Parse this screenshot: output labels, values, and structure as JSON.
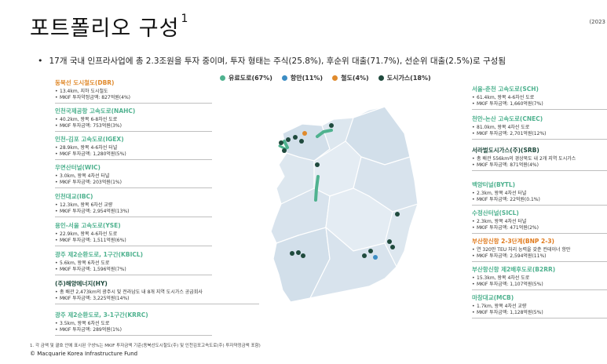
{
  "header": {
    "title": "포트폴리오 구성",
    "title_sup": "1",
    "date": "(2023"
  },
  "summary": {
    "bullet": "17개 국내 인프라사업에 총 2.3조원을 투자 중이며, 투자 형태는 주식(25.8%), 후순위 대출(71.7%), 선순위 대출(2.5%)로 구성됨"
  },
  "legend": [
    {
      "label": "유료도로(67%)",
      "color": "#4fb28f"
    },
    {
      "label": "항만(11%)",
      "color": "#3c8dc4"
    },
    {
      "label": "철도(4%)",
      "color": "#e08a2c"
    },
    {
      "label": "도시가스(18%)",
      "color": "#1f4a3d"
    }
  ],
  "left_assets": [
    {
      "name": "동북선 도시철도(DBR)",
      "type": "rail",
      "lines": [
        "13.4km, 지하 도시철도",
        "MKIF 투자약정금액: 827억원(4%)"
      ]
    },
    {
      "name": "인천국제공항 고속도로(NAHC)",
      "type": "toll",
      "lines": [
        "40.2km, 왕복 6-8차선 도로",
        "MKIF 투자금액: 753억원(3%)"
      ]
    },
    {
      "name": "인천-김포 고속도로(IGEX)",
      "type": "toll",
      "lines": [
        "28.9km, 왕복 4-6차선 터널",
        "MKIF 투자금액: 1,280억원(5%)"
      ]
    },
    {
      "name": "우면산터널(WIC)",
      "type": "toll",
      "lines": [
        "3.0km, 왕복 4차선 터널",
        "MKIF 투자금액: 203억원(1%)"
      ]
    },
    {
      "name": "인천대교(IBC)",
      "type": "toll",
      "lines": [
        "12.3km, 왕복 6차선 교량",
        "MKIF 투자금액: 2,954억원(13%)"
      ]
    },
    {
      "name": "용인-서울 고속도로(YSE)",
      "type": "toll",
      "lines": [
        "22.9km, 왕복 4-6차선 도로",
        "MKIF 투자금액: 1,511억원(6%)"
      ]
    },
    {
      "name": "광주 제2순환도로, 1구간(KBICL)",
      "type": "toll",
      "lines": [
        "5.6km, 왕복 6차선 도로",
        "MKIF 투자금액: 1,596억원(7%)"
      ]
    },
    {
      "name": "(주)해양에너지(HY)",
      "type": "gas",
      "lines": [
        "총 배관 2,473km의 광주시 및 전라남도 내 8개 지역 도시가스 공급회사",
        "MKIF 투자금액: 3,225억원(14%)"
      ]
    },
    {
      "name": "광주 제2순환도로, 3-1구간(KRRC)",
      "type": "toll",
      "lines": [
        "3.5km, 왕복 6차선 도로",
        "MKIF 투자금액: 289억원(1%)"
      ]
    }
  ],
  "right_assets": [
    {
      "name": "서울-춘천 고속도로(SCH)",
      "type": "toll",
      "lines": [
        "61.4km, 왕복 4-6차선 도로",
        "MKIF 투자금액: 1,660억원(7%)"
      ]
    },
    {
      "name": "천안-논산 고속도로(CNEC)",
      "type": "toll",
      "lines": [
        "81.0km, 왕복 4차선 도로",
        "MKIF 투자금액: 2,701억원(12%)"
      ]
    },
    {
      "name": "서라벌도시가스(주)(SRB)",
      "type": "gas",
      "lines": [
        "총 배관 556km의 경상북도 내 2개 지역 도시가스",
        "MKIF 투자금액: 871억원(4%)"
      ]
    },
    {
      "name": "백양터널(BYTL)",
      "type": "toll",
      "lines": [
        "2.3km, 왕복 4차선 터널",
        "MKIF 투자금액: 22억원(0.1%)"
      ]
    },
    {
      "name": "수정산터널(SICL)",
      "type": "toll",
      "lines": [
        "2.3km, 왕복 4차선 터널",
        "MKIF 투자금액: 471억원(2%)"
      ]
    },
    {
      "name": "부산항신항 2-3단계(BNP 2-3)",
      "type": "port",
      "lines": [
        "연 320만 TEU 처리 능력을 갖춘 컨테이너 항만",
        "MKIF 투자금액: 2,594억원(11%)"
      ]
    },
    {
      "name": "부산항신항 제2배후도로(B2RR)",
      "type": "toll",
      "lines": [
        "15.3km, 왕복 4차선 도로",
        "MKIF 투자금액: 1,107억원(5%)"
      ]
    },
    {
      "name": "마창대교(MCB)",
      "type": "toll",
      "lines": [
        "1.7km, 왕복 4차선 교량",
        "MKIF 투자금액: 1,128억원(5%)"
      ]
    }
  ],
  "footer": {
    "footnote": "1.    각 금액 및 괄호 안에 표시된 구성%는 MKIF 투자금액 기준(동북선도시철도(주) 및 인천김포고속도로(주) 투자약정금액 포함)",
    "copyright": "© Macquarie Korea Infrastructure Fund"
  }
}
